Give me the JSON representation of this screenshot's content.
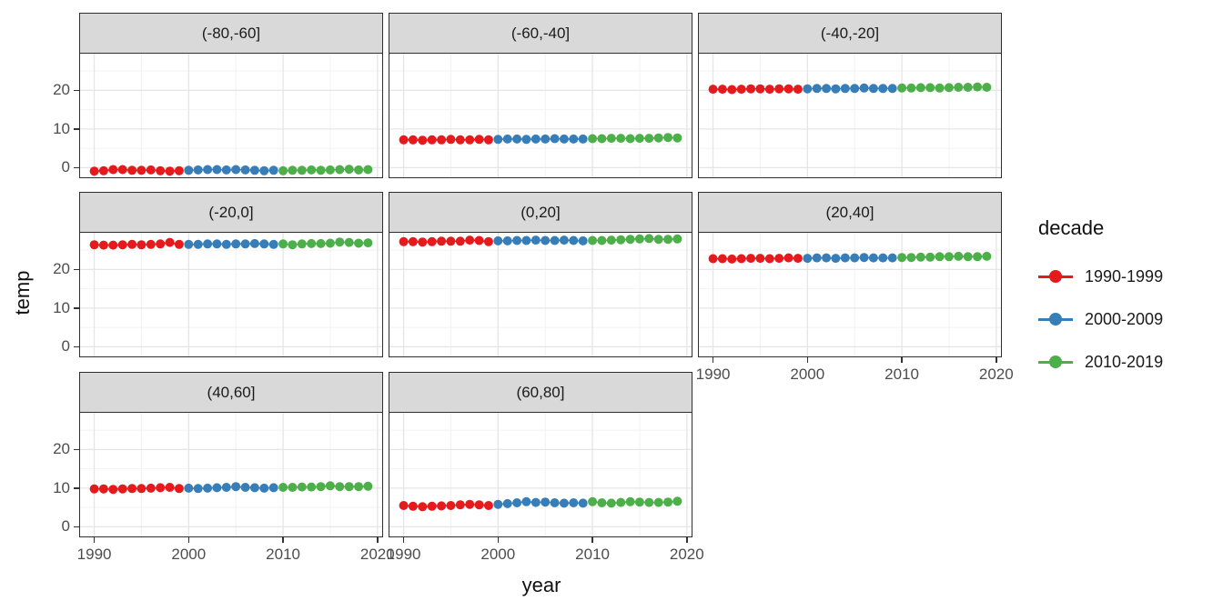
{
  "figure": {
    "x_axis_title": "year",
    "y_axis_title": "temp"
  },
  "legend": {
    "title": "decade",
    "entries": [
      {
        "label": "1990-1999",
        "color": "#E41A1C"
      },
      {
        "label": "2000-2009",
        "color": "#377EB8"
      },
      {
        "label": "2010-2019",
        "color": "#4DAF4A"
      }
    ]
  },
  "colors": {
    "strip_bg": "#D9D9D9",
    "panel_border": "#2F2F2F",
    "grid_major": "#E5E5E5",
    "grid_minor": "#F2F2F2",
    "tick_label": "#4D4D4D"
  },
  "chart_data": {
    "type": "line",
    "subtype": "faceted scatter + line, 8 facets by latitude band, points colored by decade",
    "title": "",
    "xlabel": "year",
    "ylabel": "temp",
    "legend_title": "decade",
    "legend_position": "right",
    "grid": true,
    "x": [
      1990,
      1991,
      1992,
      1993,
      1994,
      1995,
      1996,
      1997,
      1998,
      1999,
      2000,
      2001,
      2002,
      2003,
      2004,
      2005,
      2006,
      2007,
      2008,
      2009,
      2010,
      2011,
      2012,
      2013,
      2014,
      2015,
      2016,
      2017,
      2018,
      2019
    ],
    "xlim": [
      1988.5,
      2020.5
    ],
    "ylim": [
      -2.5,
      29.5
    ],
    "x_ticks": [
      {
        "v": 1990,
        "label": "1990"
      },
      {
        "v": 2000,
        "label": "2000"
      },
      {
        "v": 2010,
        "label": "2010"
      },
      {
        "v": 2020,
        "label": "2020"
      }
    ],
    "y_ticks": [
      {
        "v": 0,
        "label": "0"
      },
      {
        "v": 10,
        "label": "10"
      },
      {
        "v": 20,
        "label": "20"
      }
    ],
    "x_minor": [
      1995,
      2005,
      2015
    ],
    "y_minor": [
      5,
      15,
      25
    ],
    "decades": [
      {
        "name": "1990-1999",
        "color": "#E41A1C",
        "from": 0,
        "to": 9
      },
      {
        "name": "2000-2009",
        "color": "#377EB8",
        "from": 10,
        "to": 19
      },
      {
        "name": "2010-2019",
        "color": "#4DAF4A",
        "from": 20,
        "to": 29
      }
    ],
    "facets": [
      {
        "label": "(-80,-60]",
        "values": [
          -0.9,
          -0.8,
          -0.5,
          -0.5,
          -0.7,
          -0.7,
          -0.6,
          -0.8,
          -0.9,
          -0.8,
          -0.7,
          -0.6,
          -0.5,
          -0.5,
          -0.6,
          -0.5,
          -0.6,
          -0.7,
          -0.8,
          -0.7,
          -0.8,
          -0.7,
          -0.7,
          -0.6,
          -0.7,
          -0.6,
          -0.5,
          -0.4,
          -0.6,
          -0.5
        ]
      },
      {
        "label": "(-60,-40]",
        "values": [
          7.2,
          7.2,
          7.1,
          7.2,
          7.2,
          7.3,
          7.2,
          7.2,
          7.3,
          7.2,
          7.3,
          7.4,
          7.4,
          7.3,
          7.4,
          7.4,
          7.5,
          7.4,
          7.4,
          7.4,
          7.5,
          7.5,
          7.6,
          7.6,
          7.5,
          7.6,
          7.6,
          7.7,
          7.8,
          7.7
        ]
      },
      {
        "label": "(-40,-20]",
        "values": [
          20.3,
          20.3,
          20.2,
          20.3,
          20.4,
          20.4,
          20.3,
          20.4,
          20.4,
          20.3,
          20.4,
          20.5,
          20.5,
          20.4,
          20.5,
          20.5,
          20.6,
          20.5,
          20.5,
          20.5,
          20.6,
          20.6,
          20.7,
          20.7,
          20.6,
          20.7,
          20.8,
          20.8,
          20.9,
          20.8
        ]
      },
      {
        "label": "(-20,0]",
        "values": [
          26.4,
          26.3,
          26.3,
          26.4,
          26.5,
          26.4,
          26.5,
          26.6,
          27.0,
          26.5,
          26.5,
          26.5,
          26.6,
          26.6,
          26.5,
          26.6,
          26.6,
          26.7,
          26.6,
          26.5,
          26.6,
          26.4,
          26.6,
          26.7,
          26.7,
          26.8,
          27.1,
          27.0,
          26.8,
          26.9
        ]
      },
      {
        "label": "(0,20]",
        "values": [
          27.2,
          27.2,
          27.1,
          27.2,
          27.3,
          27.3,
          27.3,
          27.6,
          27.5,
          27.2,
          27.4,
          27.4,
          27.5,
          27.5,
          27.6,
          27.5,
          27.5,
          27.6,
          27.5,
          27.4,
          27.5,
          27.5,
          27.6,
          27.7,
          27.8,
          27.9,
          28.0,
          27.8,
          27.8,
          27.9
        ]
      },
      {
        "label": "(20,40]",
        "values": [
          22.8,
          22.8,
          22.7,
          22.8,
          22.9,
          22.9,
          22.8,
          22.9,
          23.0,
          22.9,
          22.9,
          23.0,
          23.0,
          22.9,
          23.0,
          23.0,
          23.1,
          23.0,
          23.0,
          23.0,
          23.1,
          23.1,
          23.2,
          23.2,
          23.3,
          23.3,
          23.4,
          23.3,
          23.3,
          23.4
        ]
      },
      {
        "label": "(40,60]",
        "values": [
          9.8,
          9.8,
          9.7,
          9.8,
          9.9,
          9.9,
          10.0,
          10.1,
          10.2,
          9.9,
          10.0,
          9.9,
          10.0,
          10.1,
          10.2,
          10.4,
          10.2,
          10.1,
          10.0,
          10.1,
          10.2,
          10.2,
          10.3,
          10.3,
          10.4,
          10.6,
          10.4,
          10.4,
          10.4,
          10.5
        ]
      },
      {
        "label": "(60,80]",
        "values": [
          5.5,
          5.3,
          5.2,
          5.3,
          5.4,
          5.5,
          5.7,
          5.8,
          5.7,
          5.5,
          5.8,
          6.0,
          6.2,
          6.5,
          6.3,
          6.4,
          6.2,
          6.1,
          6.2,
          6.1,
          6.5,
          6.2,
          6.1,
          6.3,
          6.5,
          6.4,
          6.3,
          6.3,
          6.4,
          6.6
        ]
      }
    ]
  }
}
